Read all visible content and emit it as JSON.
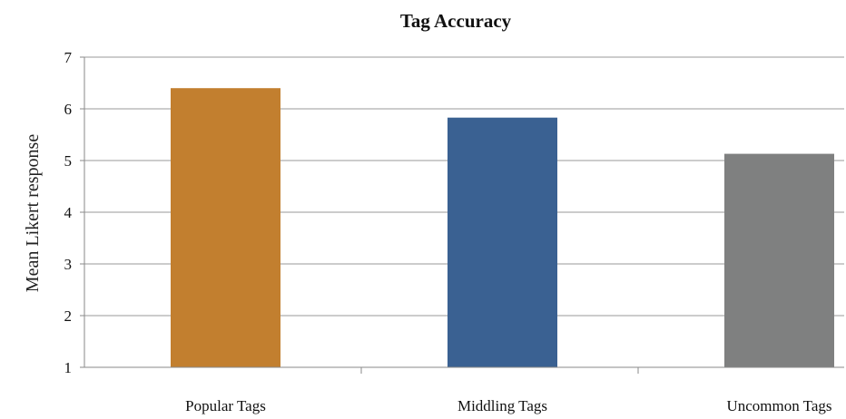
{
  "chart_data": {
    "type": "bar",
    "title": "Tag Accuracy",
    "xlabel": "",
    "ylabel": "Mean Likert response",
    "ylim": [
      1,
      7
    ],
    "yticks": [
      1,
      2,
      3,
      4,
      5,
      6,
      7
    ],
    "grid": true,
    "legend": "none",
    "categories": [
      "Popular Tags",
      "Middling Tags",
      "Uncommon Tags"
    ],
    "values": [
      6.4,
      5.83,
      5.13
    ],
    "colors": [
      "#c27f2f",
      "#3a6192",
      "#7f8080"
    ]
  }
}
